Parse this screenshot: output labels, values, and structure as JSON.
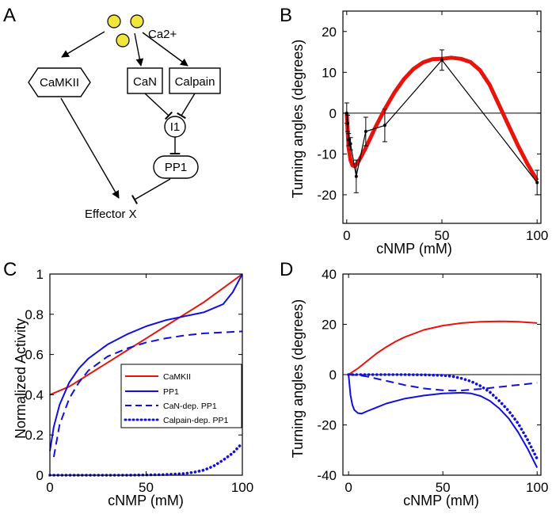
{
  "panels": {
    "A": {
      "letter": "A",
      "ion_label": "Ca2+",
      "nodes": {
        "camkii": "CaMKII",
        "can": "CaN",
        "calpain": "Calpain",
        "i1": "I1",
        "pp1": "PP1",
        "effector": "Effector X"
      }
    },
    "B": {
      "letter": "B"
    },
    "C": {
      "letter": "C"
    },
    "D": {
      "letter": "D"
    }
  },
  "chart_data": [
    {
      "panel": "B",
      "type": "line",
      "xlabel": "cNMP (mM)",
      "ylabel": "Turning angles (degrees)",
      "xlim": [
        -2,
        102
      ],
      "ylim": [
        -27,
        25
      ],
      "xticks": [
        0,
        50,
        100
      ],
      "yticks": [
        20,
        10,
        0,
        -10,
        -20
      ],
      "zero_line": true,
      "series": [
        {
          "kind": "fit",
          "color": "#e8140c",
          "x": [
            0,
            0.5,
            1,
            2,
            3,
            4,
            5,
            6,
            8,
            10,
            12,
            15,
            18,
            20,
            25,
            30,
            35,
            40,
            45,
            50,
            55,
            60,
            65,
            70,
            75,
            80,
            85,
            90,
            95,
            100
          ],
          "y": [
            0,
            -4.5,
            -8.5,
            -11.5,
            -12.8,
            -13,
            -12.6,
            -12,
            -10.3,
            -8.5,
            -6.5,
            -3.5,
            -0.8,
            1,
            5,
            8.3,
            10.8,
            12.4,
            13.2,
            13.3,
            13.6,
            13.3,
            12.5,
            10.5,
            7,
            2,
            -3,
            -8,
            -12.5,
            -16.5
          ]
        },
        {
          "kind": "data",
          "color": "#000000",
          "x": [
            0,
            0.5,
            1,
            2,
            5,
            10,
            20,
            50,
            100
          ],
          "y": [
            0,
            -2.5,
            -6.5,
            -7.5,
            -15.5,
            -4.5,
            -3,
            13,
            -17
          ],
          "err": [
            2.5,
            2,
            1.5,
            1.5,
            4,
            3.5,
            4,
            2.5,
            3
          ]
        }
      ]
    },
    {
      "panel": "C",
      "type": "line",
      "xlabel": "cNMP (mM)",
      "ylabel": "Normalized Activity",
      "xlim": [
        0,
        100
      ],
      "ylim": [
        0,
        1
      ],
      "xticks": [
        0,
        50,
        100
      ],
      "yticks": [
        0,
        0.2,
        0.4,
        0.6,
        0.8,
        1
      ],
      "legend": "center-right",
      "series": [
        {
          "name": "CaMKII",
          "color": "#e8140c",
          "dash": "solid",
          "x": [
            0,
            10,
            20,
            30,
            40,
            50,
            60,
            70,
            80,
            90,
            100
          ],
          "y": [
            0.4,
            0.44,
            0.5,
            0.56,
            0.62,
            0.68,
            0.74,
            0.8,
            0.86,
            0.93,
            1.0
          ]
        },
        {
          "name": "PP1",
          "color": "#1010e0",
          "dash": "solid",
          "x": [
            0,
            2,
            5,
            10,
            15,
            20,
            30,
            40,
            50,
            60,
            70,
            80,
            90,
            95,
            100
          ],
          "y": [
            0.12,
            0.24,
            0.35,
            0.46,
            0.53,
            0.58,
            0.65,
            0.7,
            0.74,
            0.77,
            0.79,
            0.81,
            0.85,
            0.91,
            1.0
          ]
        },
        {
          "name": "CaN-dep. PP1",
          "color": "#1010e0",
          "dash": "dashed",
          "x": [
            2,
            5,
            10,
            15,
            20,
            30,
            40,
            50,
            60,
            70,
            80,
            90,
            100
          ],
          "y": [
            0.09,
            0.25,
            0.38,
            0.46,
            0.52,
            0.59,
            0.63,
            0.66,
            0.68,
            0.695,
            0.705,
            0.71,
            0.715
          ]
        },
        {
          "name": "Calpain-dep. PP1",
          "color": "#1010e0",
          "dash": "dotted",
          "x": [
            0,
            10,
            20,
            30,
            40,
            50,
            60,
            70,
            75,
            80,
            85,
            90,
            95,
            100
          ],
          "y": [
            0,
            0,
            0,
            0,
            0,
            0.001,
            0.003,
            0.008,
            0.015,
            0.025,
            0.045,
            0.075,
            0.11,
            0.16
          ]
        }
      ]
    },
    {
      "panel": "D",
      "type": "line",
      "xlabel": "cNMP (mM)",
      "ylabel": "Turning angles (degrees)",
      "xlim": [
        -3,
        102
      ],
      "ylim": [
        -40,
        40
      ],
      "xticks": [
        0,
        50,
        100
      ],
      "yticks": [
        40,
        20,
        0,
        -20,
        -40
      ],
      "zero_line": true,
      "series": [
        {
          "color": "#e8140c",
          "dash": "solid",
          "x": [
            0,
            5,
            10,
            15,
            20,
            25,
            30,
            40,
            50,
            60,
            70,
            80,
            90,
            100
          ],
          "y": [
            0,
            2.5,
            5.5,
            8.5,
            11,
            13.2,
            15,
            17.8,
            19.5,
            20.5,
            21,
            21.2,
            21,
            20.5
          ]
        },
        {
          "color": "#1010e0",
          "dash": "solid",
          "x": [
            0,
            1,
            2,
            3,
            5,
            7,
            10,
            15,
            20,
            30,
            40,
            50,
            60,
            65,
            70,
            75,
            80,
            85,
            90,
            95,
            100
          ],
          "y": [
            0,
            -8,
            -12,
            -14,
            -15.3,
            -15.5,
            -14.5,
            -13,
            -11.5,
            -9.5,
            -8.3,
            -7.5,
            -7.2,
            -7.5,
            -8.5,
            -10.5,
            -13.5,
            -17.5,
            -23,
            -29.5,
            -37
          ]
        },
        {
          "color": "#1010e0",
          "dash": "dashed",
          "x": [
            0,
            5,
            10,
            20,
            30,
            40,
            50,
            55,
            60,
            70,
            80,
            90,
            100
          ],
          "y": [
            0,
            -0.2,
            -0.8,
            -2.5,
            -4.2,
            -5.5,
            -6.2,
            -6.4,
            -6.3,
            -5.7,
            -4.9,
            -4.1,
            -3.3
          ]
        },
        {
          "color": "#1010e0",
          "dash": "dotted",
          "x": [
            0,
            10,
            20,
            30,
            40,
            50,
            55,
            60,
            65,
            70,
            75,
            80,
            85,
            90,
            95,
            100
          ],
          "y": [
            0,
            0,
            0,
            0,
            -0.1,
            -0.3,
            -0.7,
            -1.5,
            -2.7,
            -4.5,
            -7,
            -10.5,
            -14.5,
            -19.5,
            -26,
            -33.5
          ]
        }
      ]
    }
  ]
}
